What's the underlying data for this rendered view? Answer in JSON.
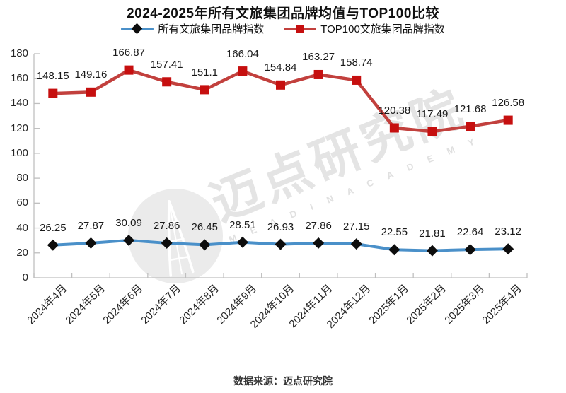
{
  "title": "2024-2025年所有文旅集团品牌均值与TOP100比较",
  "legend": {
    "items": [
      {
        "label": "所有文旅集团品牌指数"
      },
      {
        "label": "TOP100文旅集团品牌指数"
      }
    ]
  },
  "watermark": {
    "text": "迈点研究院",
    "subtext": "M E A D I N    A C A D E M Y"
  },
  "source": "数据来源：迈点研究院",
  "chart_data": {
    "type": "line",
    "categories": [
      "2024年4月",
      "2024年5月",
      "2024年6月",
      "2024年7月",
      "2024年8月",
      "2024年9月",
      "2024年10月",
      "2024年11月",
      "2024年12月",
      "2025年1月",
      "2025年2月",
      "2025年3月",
      "2025年4月"
    ],
    "series": [
      {
        "name": "所有文旅集团品牌指数",
        "values": [
          26.25,
          27.87,
          30.09,
          27.86,
          26.45,
          28.51,
          26.93,
          27.86,
          27.15,
          22.55,
          21.81,
          22.64,
          23.12
        ],
        "color": "#4a90c9",
        "marker": "diamond",
        "marker_color": "#0d0d0d",
        "line_width": 4
      },
      {
        "name": "TOP100文旅集团品牌指数",
        "values": [
          148.15,
          149.16,
          166.87,
          157.41,
          151.1,
          166.04,
          154.84,
          163.27,
          158.74,
          120.38,
          117.49,
          121.68,
          126.58
        ],
        "color": "#c2403d",
        "marker": "square",
        "marker_color": "#c60f0f",
        "line_width": 4.5
      }
    ],
    "ylim": [
      0,
      180
    ],
    "yticks": [
      0,
      20,
      40,
      60,
      80,
      100,
      120,
      140,
      160,
      180
    ],
    "grid": false,
    "legend_position": "top",
    "axis_color": "#bfbfbf",
    "data_labels": true
  }
}
